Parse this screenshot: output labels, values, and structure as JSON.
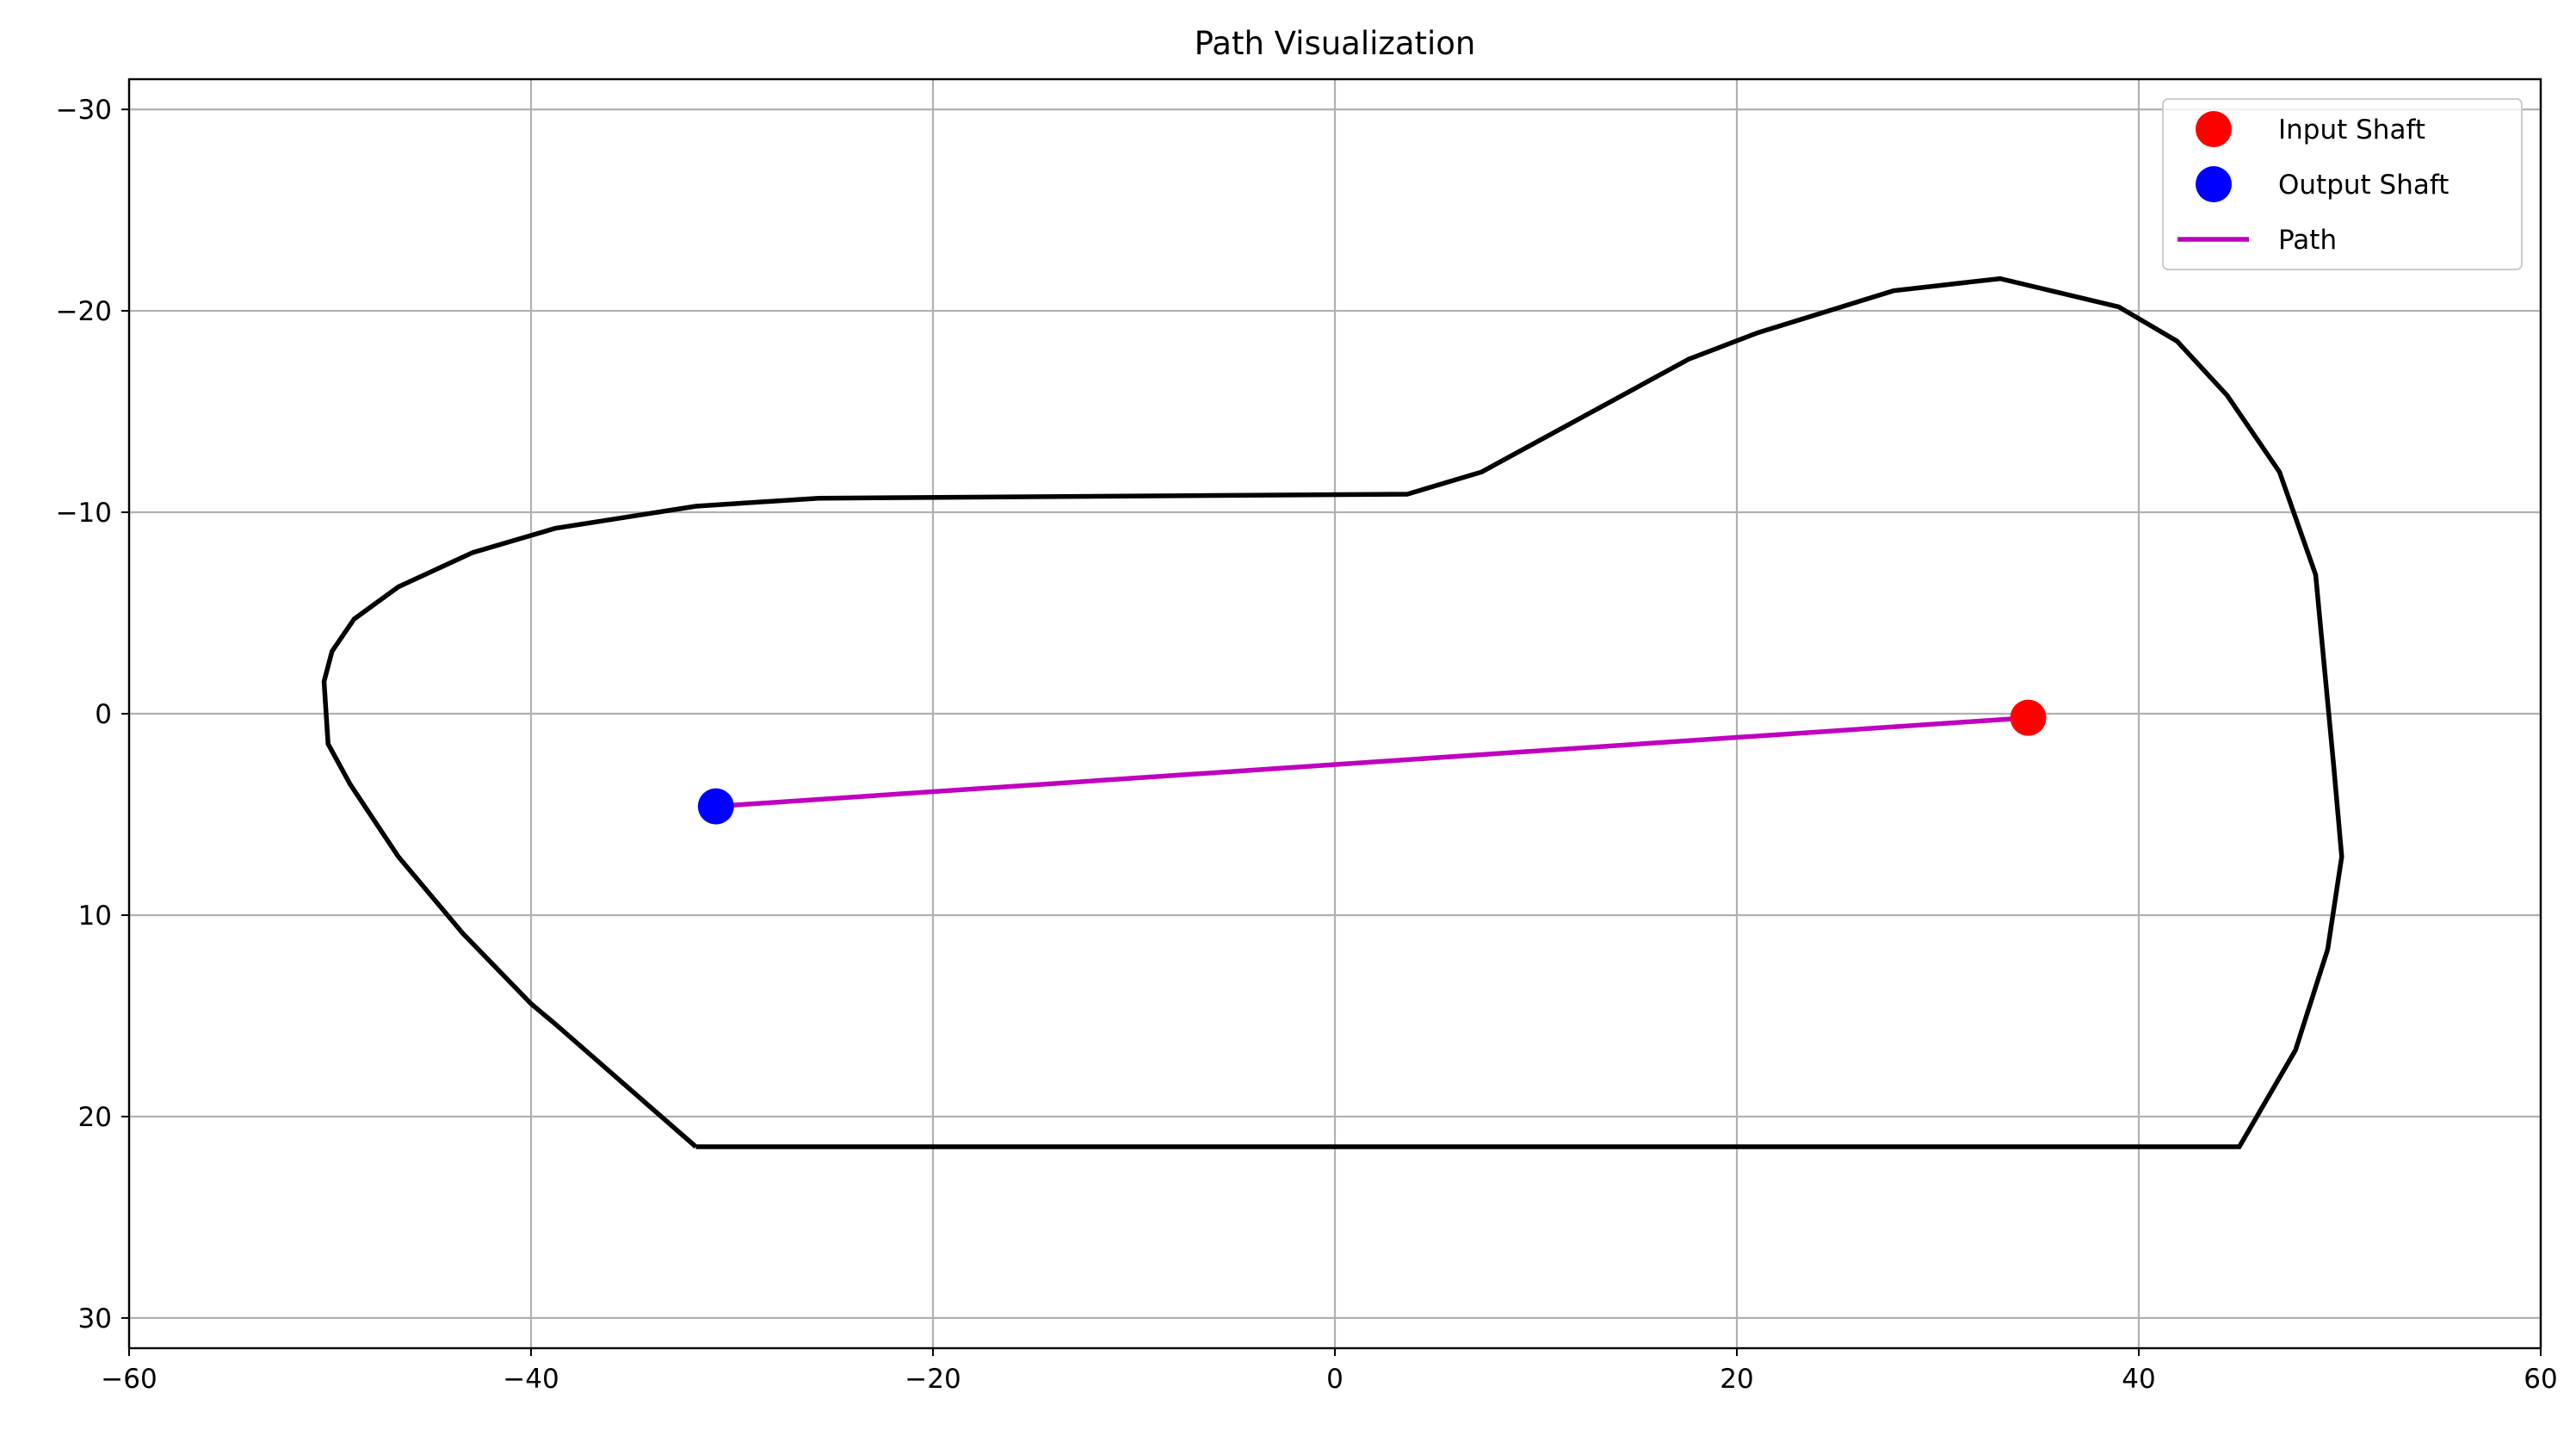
{
  "chart_data": {
    "type": "line",
    "title": "Path Visualization",
    "xlabel": "",
    "ylabel": "",
    "xlim": [
      -60,
      60
    ],
    "ylim": [
      31.5,
      -31.5
    ],
    "y_axis_inverted": true,
    "grid": true,
    "legend_position": "top-right",
    "x_ticks": [
      -60,
      -40,
      -20,
      0,
      20,
      40,
      60
    ],
    "y_ticks": [
      -30,
      -20,
      -10,
      0,
      10,
      20,
      30
    ],
    "x_tick_labels": [
      "−60",
      "−40",
      "−20",
      "0",
      "20",
      "40",
      "60"
    ],
    "y_tick_labels": [
      "−30",
      "−20",
      "−10",
      "0",
      "10",
      "20",
      "30"
    ],
    "boundary": {
      "color": "#000000",
      "x": [
        -31.8,
        45.0,
        47.8,
        49.4,
        50.1,
        49.7,
        48.8,
        47.0,
        44.4,
        41.9,
        39.0,
        33.1,
        27.8,
        21.0,
        17.6,
        7.3,
        3.6,
        -25.7,
        -31.8,
        -38.8,
        -42.9,
        -46.6,
        -48.8,
        -49.9,
        -50.3,
        -50.1,
        -49.0,
        -46.6,
        -43.4,
        -40.0,
        -38.8,
        -31.8
      ],
      "y": [
        21.5,
        21.5,
        16.7,
        11.7,
        7.1,
        2.6,
        -6.9,
        -12.0,
        -15.8,
        -18.5,
        -20.2,
        -21.6,
        -21.0,
        -18.9,
        -17.6,
        -12.0,
        -10.9,
        -10.7,
        -10.3,
        -9.2,
        -8.0,
        -6.3,
        -4.7,
        -3.1,
        -1.6,
        1.5,
        3.5,
        7.1,
        10.9,
        14.4,
        15.4,
        21.5
      ]
    },
    "series": [
      {
        "name": "Path",
        "color": "#bf00bf",
        "x": [
          34.5,
          -30.8
        ],
        "y": [
          0.2,
          4.6
        ]
      }
    ],
    "markers": [
      {
        "name": "Input Shaft",
        "color": "#ff0000",
        "x": 34.5,
        "y": 0.2
      },
      {
        "name": "Output Shaft",
        "color": "#0000ff",
        "x": -30.8,
        "y": 4.6
      }
    ]
  }
}
